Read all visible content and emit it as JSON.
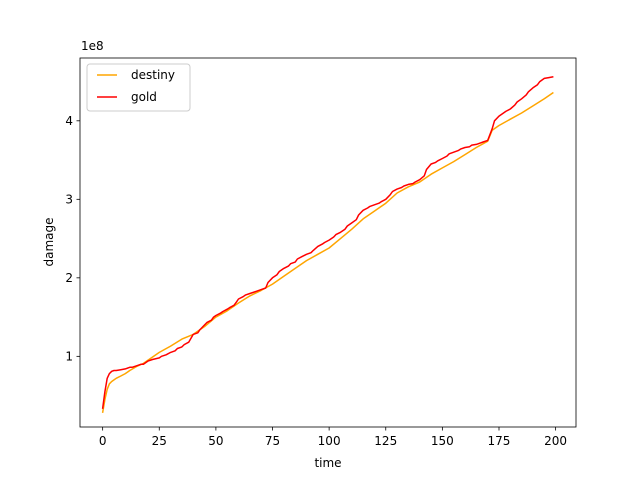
{
  "chart_data": {
    "type": "line",
    "xlabel": "time",
    "ylabel": "damage",
    "offset_text": "1e8",
    "xlim": [
      -10,
      209
    ],
    "ylim": [
      0.1,
      4.8
    ],
    "xticks": [
      0,
      25,
      50,
      75,
      100,
      125,
      150,
      175,
      200
    ],
    "yticks": [
      1,
      2,
      3,
      4
    ],
    "legend": "top-left",
    "grid": false,
    "series": [
      {
        "name": "destiny",
        "color": "#ffa500",
        "x": [
          0,
          1,
          2,
          3,
          4,
          5,
          6,
          8,
          10,
          12,
          15,
          18,
          20,
          25,
          30,
          35,
          40,
          45,
          50,
          55,
          60,
          65,
          70,
          75,
          80,
          85,
          90,
          95,
          100,
          105,
          110,
          115,
          120,
          125,
          130,
          135,
          140,
          145,
          150,
          155,
          160,
          165,
          170,
          172,
          175,
          180,
          185,
          190,
          195,
          199
        ],
        "y": [
          0.28,
          0.45,
          0.58,
          0.65,
          0.68,
          0.7,
          0.72,
          0.75,
          0.78,
          0.82,
          0.87,
          0.91,
          0.95,
          1.05,
          1.13,
          1.22,
          1.28,
          1.38,
          1.5,
          1.58,
          1.68,
          1.77,
          1.84,
          1.92,
          2.02,
          2.12,
          2.22,
          2.3,
          2.38,
          2.5,
          2.62,
          2.75,
          2.85,
          2.95,
          3.08,
          3.16,
          3.22,
          3.32,
          3.4,
          3.48,
          3.57,
          3.66,
          3.74,
          3.88,
          3.94,
          4.02,
          4.1,
          4.19,
          4.28,
          4.36
        ]
      },
      {
        "name": "gold",
        "color": "#ff0000",
        "x": [
          0,
          1,
          2,
          3,
          4,
          5,
          6,
          8,
          10,
          12,
          13,
          15,
          17,
          18,
          20,
          22,
          25,
          26,
          28,
          30,
          32,
          33,
          35,
          36,
          38,
          39,
          40,
          42,
          43,
          45,
          46,
          48,
          49,
          50,
          52,
          53,
          55,
          56,
          58,
          59,
          60,
          62,
          63,
          65,
          67,
          68,
          70,
          72,
          73,
          75,
          77,
          78,
          80,
          82,
          83,
          85,
          86,
          88,
          90,
          92,
          93,
          95,
          97,
          98,
          100,
          102,
          103,
          105,
          107,
          108,
          110,
          112,
          113,
          115,
          117,
          118,
          120,
          122,
          123,
          125,
          127,
          128,
          130,
          132,
          133,
          135,
          137,
          138,
          140,
          142,
          143,
          145,
          147,
          148,
          150,
          152,
          153,
          155,
          157,
          158,
          160,
          162,
          163,
          165,
          167,
          168,
          170,
          172,
          173,
          175,
          177,
          178,
          180,
          182,
          183,
          185,
          187,
          188,
          190,
          192,
          193,
          195,
          197,
          199
        ],
        "y": [
          0.33,
          0.55,
          0.72,
          0.78,
          0.81,
          0.82,
          0.82,
          0.83,
          0.84,
          0.86,
          0.86,
          0.88,
          0.9,
          0.9,
          0.94,
          0.96,
          0.98,
          1.0,
          1.02,
          1.05,
          1.07,
          1.1,
          1.12,
          1.15,
          1.18,
          1.23,
          1.28,
          1.3,
          1.34,
          1.4,
          1.43,
          1.46,
          1.5,
          1.52,
          1.55,
          1.57,
          1.6,
          1.62,
          1.65,
          1.69,
          1.73,
          1.76,
          1.78,
          1.8,
          1.82,
          1.83,
          1.85,
          1.87,
          1.94,
          2.0,
          2.04,
          2.08,
          2.12,
          2.15,
          2.18,
          2.2,
          2.24,
          2.27,
          2.3,
          2.32,
          2.35,
          2.4,
          2.43,
          2.45,
          2.48,
          2.52,
          2.55,
          2.58,
          2.62,
          2.66,
          2.7,
          2.74,
          2.8,
          2.86,
          2.89,
          2.91,
          2.93,
          2.95,
          2.97,
          3.0,
          3.06,
          3.1,
          3.13,
          3.15,
          3.17,
          3.19,
          3.2,
          3.22,
          3.25,
          3.3,
          3.38,
          3.45,
          3.47,
          3.49,
          3.52,
          3.55,
          3.58,
          3.6,
          3.62,
          3.64,
          3.66,
          3.67,
          3.69,
          3.7,
          3.72,
          3.73,
          3.75,
          3.9,
          4.0,
          4.06,
          4.1,
          4.12,
          4.15,
          4.2,
          4.24,
          4.28,
          4.33,
          4.37,
          4.42,
          4.46,
          4.5,
          4.54,
          4.55,
          4.56
        ]
      }
    ]
  }
}
